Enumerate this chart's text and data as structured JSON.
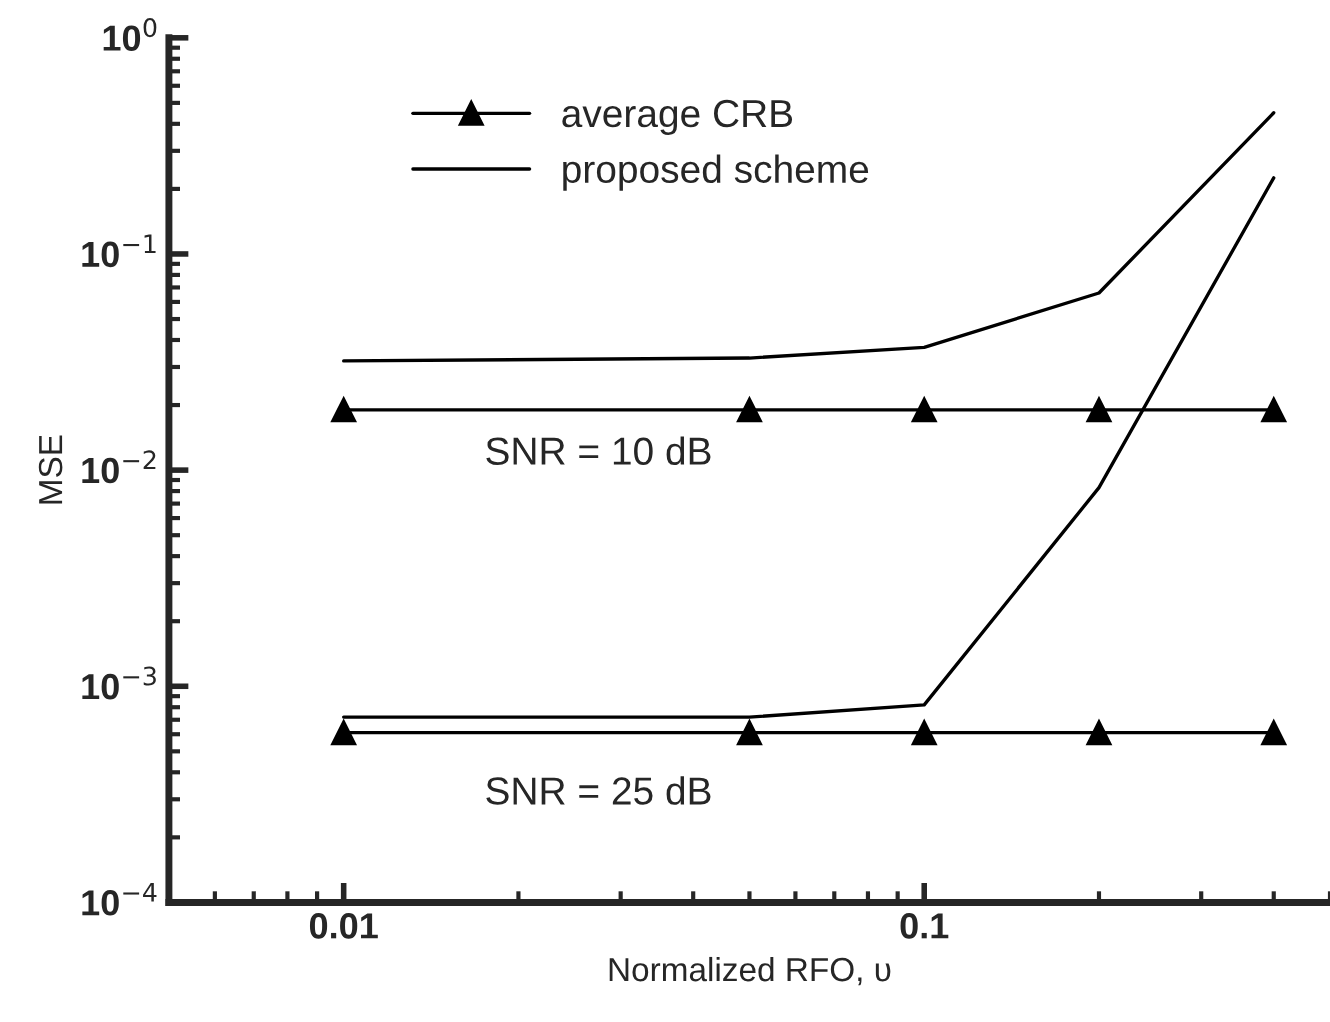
{
  "chart_data": {
    "type": "line",
    "xlabel": "Normalized RFO, υ",
    "ylabel": "MSE",
    "log": "xy",
    "legend": "top left",
    "grid": false,
    "xlim": [
      0.005,
      0.5
    ],
    "xticks": [
      0.01,
      0.1
    ],
    "ylim": [
      0.0001,
      1
    ],
    "yticks": [
      {
        "value": 0.0001,
        "label": "10$^{−4}$"
      },
      {
        "value": 0.001,
        "label": "10$^{−3}$"
      },
      {
        "value": 0.01,
        "label": "10$^{−2}$"
      },
      {
        "value": 0.1,
        "label": "10$^{−1}$"
      },
      {
        "value": 1,
        "label": "10$^{0}$"
      }
    ],
    "series": [
      {
        "name": "average CRB",
        "color": "#000000",
        "marker": "triangle",
        "x": [
          0.01,
          0.05,
          0.1,
          0.2,
          0.4
        ],
        "values": [
          0.019,
          0.019,
          0.019,
          0.019,
          0.019
        ]
      },
      {
        "name": "proposed scheme",
        "color": "#000000",
        "marker": "none",
        "x": [
          0.01,
          0.05,
          0.1,
          0.2,
          0.4
        ],
        "values": [
          0.032,
          0.033,
          0.037,
          0.066,
          0.45
        ]
      },
      {
        "color": "#000000",
        "marker": "triangle",
        "x": [
          0.01,
          0.05,
          0.1,
          0.2,
          0.4
        ],
        "values": [
          0.00061,
          0.00061,
          0.00061,
          0.00061,
          0.00061
        ]
      },
      {
        "color": "#000000",
        "marker": "none",
        "x": [
          0.01,
          0.05,
          0.1,
          0.2,
          0.4
        ],
        "values": [
          0.00072,
          0.00072,
          0.00082,
          0.0083,
          0.225
        ]
      }
    ],
    "annotations": [
      "SNR = 10 dB",
      "SNR = 25 dB"
    ]
  }
}
